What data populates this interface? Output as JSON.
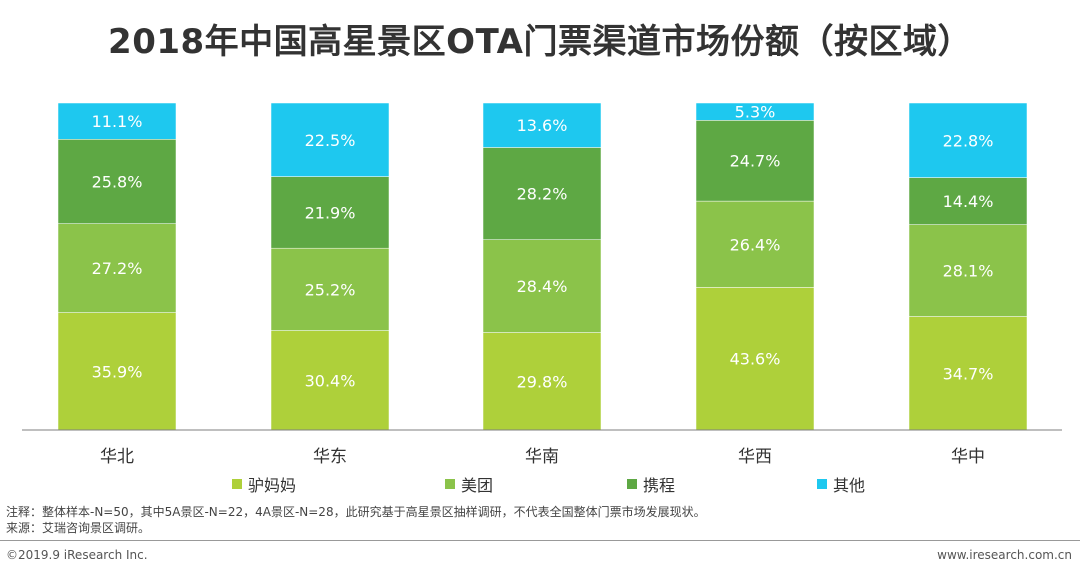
{
  "title": "2018年中国高星景区OTA门票渠道市场份额（按区域）",
  "chart_data": {
    "type": "bar",
    "stacked": true,
    "percent": true,
    "title": "2018年中国高星景区OTA门票渠道市场份额（按区域）",
    "categories": [
      "华北",
      "华东",
      "华南",
      "华西",
      "华中"
    ],
    "series": [
      {
        "name": "驴妈妈",
        "color": "#aed03a",
        "values": [
          35.9,
          30.4,
          29.8,
          43.6,
          34.7
        ]
      },
      {
        "name": "美团",
        "color": "#8bc34a",
        "values": [
          27.2,
          25.2,
          28.4,
          26.4,
          28.1
        ]
      },
      {
        "name": "携程",
        "color": "#5ea844",
        "values": [
          25.8,
          21.9,
          28.2,
          24.7,
          14.4
        ]
      },
      {
        "name": "其他",
        "color": "#1ec8ef",
        "values": [
          11.1,
          22.5,
          13.6,
          5.3,
          22.8
        ]
      }
    ],
    "ylim": [
      0,
      100
    ],
    "label_suffix": "%"
  },
  "notes": {
    "line1": "注释：整体样本-N=50，其中5A景区-N=22，4A景区-N=28，此研究基于高星景区抽样调研，不代表全国整体门票市场发展现状。",
    "line2": "来源：艾瑞咨询景区调研。"
  },
  "footer": {
    "copyright": "©2019.9 iResearch Inc.",
    "website": "www.iresearch.com.cn"
  }
}
